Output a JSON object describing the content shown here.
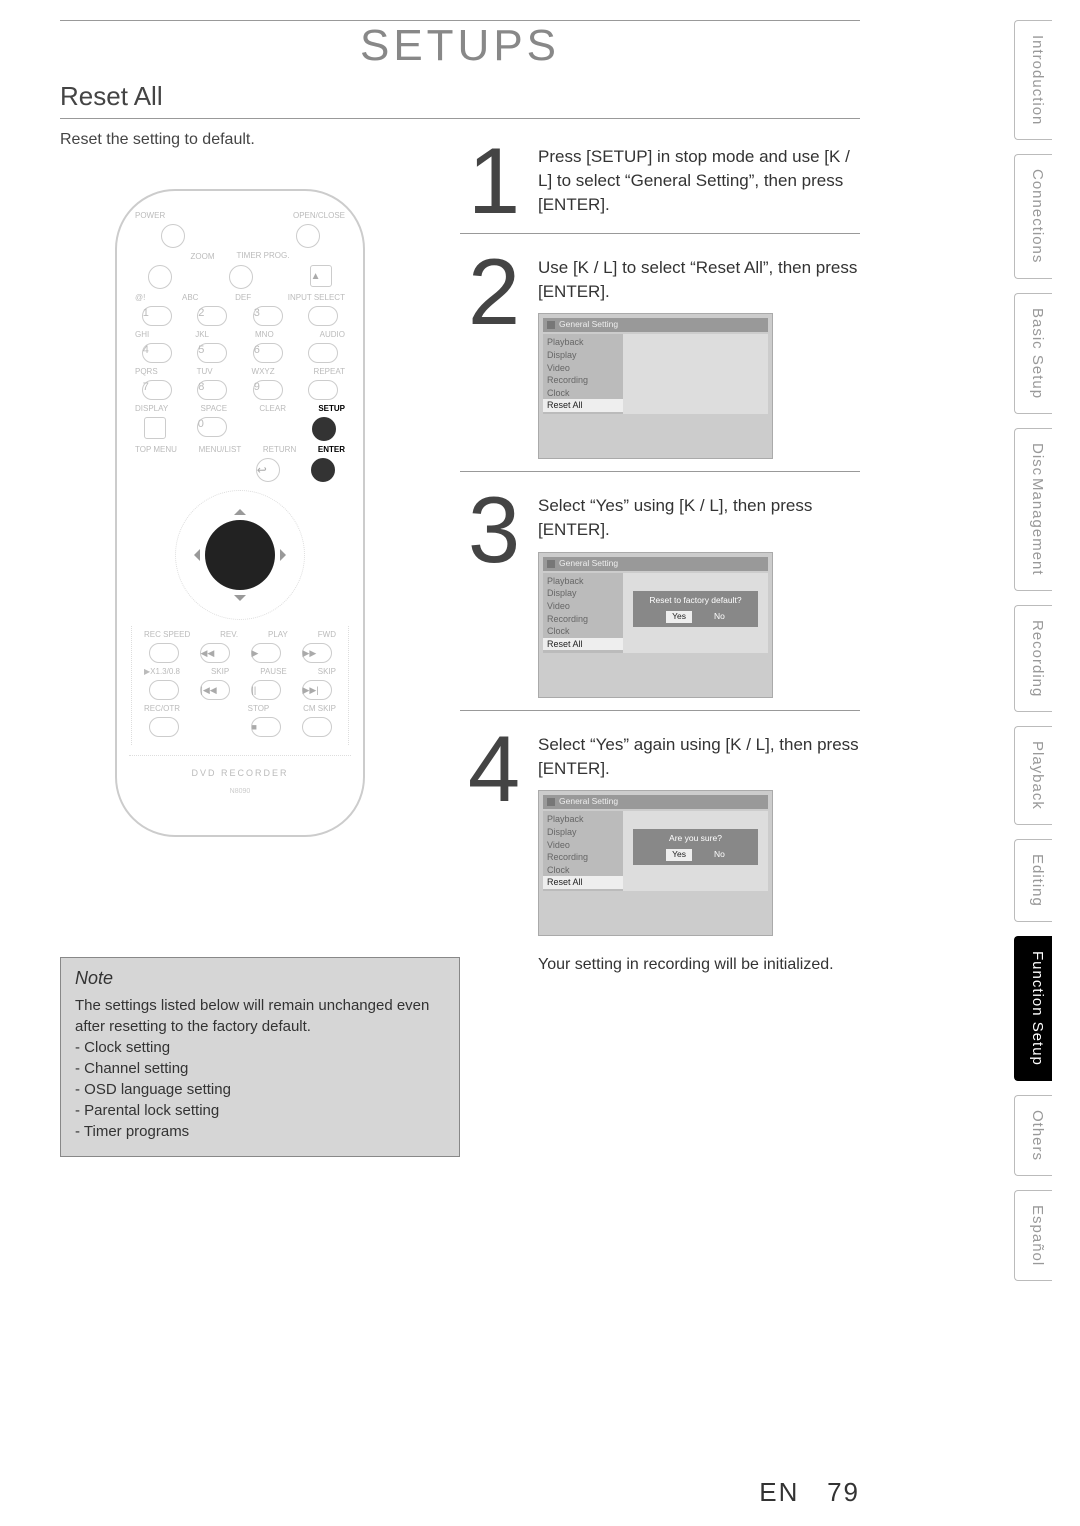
{
  "chapter_title": "SETUPS",
  "section_title": "Reset All",
  "section_subtext": "Reset the setting to default.",
  "steps": [
    {
      "num": "1",
      "text": "Press [SETUP] in stop mode and use [K / L] to select “General Setting”, then press [ENTER]."
    },
    {
      "num": "2",
      "text": "Use [K / L] to select “Reset All”, then press [ENTER]."
    },
    {
      "num": "3",
      "text": "Select “Yes” using [K / L], then press [ENTER]."
    },
    {
      "num": "4",
      "text": "Select “Yes” again using [K / L], then press [ENTER]."
    }
  ],
  "step4_footnote": "Your setting in recording will be initialized.",
  "osd": {
    "title": "General Setting",
    "menu_items": [
      "Playback",
      "Display",
      "Video",
      "Recording",
      "Clock",
      "Reset All"
    ],
    "selected_index": 5,
    "dialog_q1": "Reset to factory default?",
    "dialog_q2": "Are you sure?",
    "yes": "Yes",
    "no": "No"
  },
  "note": {
    "title": "Note",
    "lead": "The settings listed below will remain unchanged even after resetting to the factory default.",
    "items": [
      "Clock setting",
      "Channel setting",
      "OSD language setting",
      "Parental lock setting",
      "Timer programs"
    ]
  },
  "remote": {
    "row1": [
      "POWER",
      "",
      "",
      "OPEN/CLOSE"
    ],
    "row2": [
      "",
      "ZOOM",
      "TIMER PROG.",
      ""
    ],
    "row3": [
      "@!",
      "ABC",
      "DEF",
      "INPUT SELECT"
    ],
    "nums_r1": [
      "1",
      "2",
      "3"
    ],
    "row4": [
      "GHI",
      "JKL",
      "MNO",
      "AUDIO"
    ],
    "nums_r2": [
      "4",
      "5",
      "6"
    ],
    "row5": [
      "PQRS",
      "TUV",
      "WXYZ",
      "REPEAT"
    ],
    "nums_r3": [
      "7",
      "8",
      "9"
    ],
    "row6": [
      "DISPLAY",
      "SPACE",
      "CLEAR",
      "SETUP"
    ],
    "nums_r4": [
      "",
      "0",
      "",
      ""
    ],
    "row7": [
      "TOP MENU",
      "MENU/LIST",
      "RETURN",
      "ENTER"
    ],
    "transport_labels_1": [
      "REC SPEED",
      "REV.",
      "PLAY",
      "FWD"
    ],
    "transport_labels_2": [
      "▶X1.3/0.8",
      "SKIP",
      "PAUSE",
      "SKIP"
    ],
    "transport_labels_3": [
      "REC/OTR",
      "",
      "STOP",
      "CM SKIP"
    ],
    "brand": "DVD RECORDER",
    "model": "N8090"
  },
  "tabs": [
    {
      "label": "Introduction",
      "active": false
    },
    {
      "label": "Connections",
      "active": false
    },
    {
      "label": "Basic Setup",
      "active": false
    },
    {
      "label": "Disc Management",
      "active": false,
      "double": true,
      "lines": [
        "Disc",
        "Management"
      ]
    },
    {
      "label": "Recording",
      "active": false
    },
    {
      "label": "Playback",
      "active": false
    },
    {
      "label": "Editing",
      "active": false
    },
    {
      "label": "Function Setup",
      "active": true
    },
    {
      "label": "Others",
      "active": false
    },
    {
      "label": "Español",
      "active": false
    }
  ],
  "page_lang": "EN",
  "page_num": "79",
  "colors": {
    "text": "#333333",
    "muted": "#999999",
    "tab_active_bg": "#000000",
    "tab_active_fg": "#ffffff",
    "osd_bg": "#cccccc",
    "osd_pane": "#dddddd",
    "note_bg": "#d6d6d6"
  }
}
